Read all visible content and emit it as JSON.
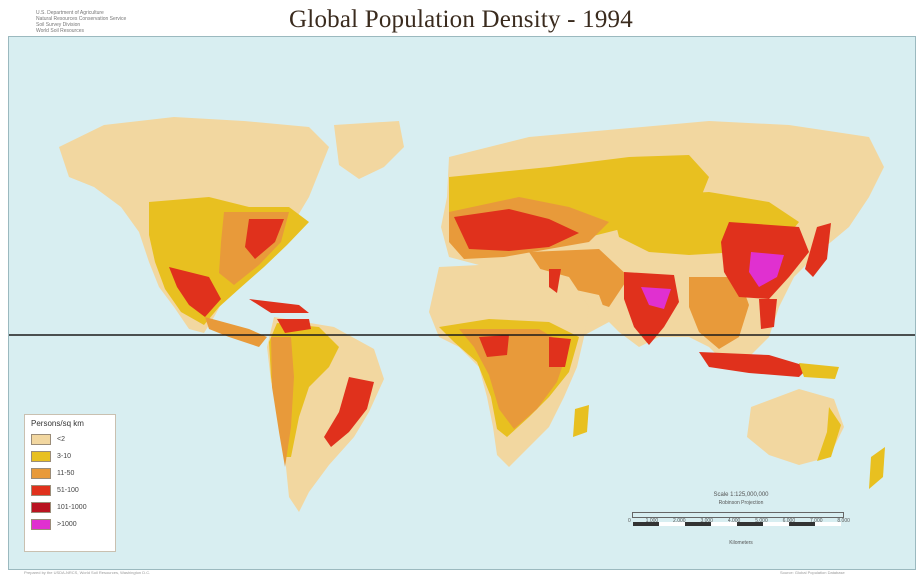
{
  "title": "Global Population Density - 1994",
  "agency_text": "U.S. Department of Agriculture\nNatural Resources Conservation Service\nSoil Survey Division\nWorld Soil Resources",
  "legend": {
    "title": "Persons/sq km",
    "items": [
      {
        "label": "<2",
        "color": "#f2d7a0"
      },
      {
        "label": "3-10",
        "color": "#e8c020"
      },
      {
        "label": "11-50",
        "color": "#e89a3a"
      },
      {
        "label": "51-100",
        "color": "#e0311c"
      },
      {
        "label": "101-1000",
        "color": "#b91320"
      },
      {
        "label": ">1000",
        "color": "#e030d0"
      }
    ]
  },
  "scale": {
    "title": "Scale 1:125,000,000",
    "subtitle": "Robinson Projection",
    "labels": [
      "0",
      "1,000",
      "2,000",
      "3,000",
      "4,000",
      "5,000",
      "6,000",
      "7,000",
      "8,000"
    ],
    "units": "Kilometers"
  },
  "colors": {
    "ocean": "#d8eef1",
    "sparse": "#f2d7a0",
    "low": "#e8c020",
    "moderate": "#e89a3a",
    "high": "#e0311c",
    "very_high": "#b91320",
    "extreme": "#e030d0",
    "equator_line": "#1a1a1a"
  },
  "credits": {
    "left": "Prepared by the USDA-NRCS, World Soil Resources, Washington D.C.",
    "right": "Source: Global Population Database"
  }
}
